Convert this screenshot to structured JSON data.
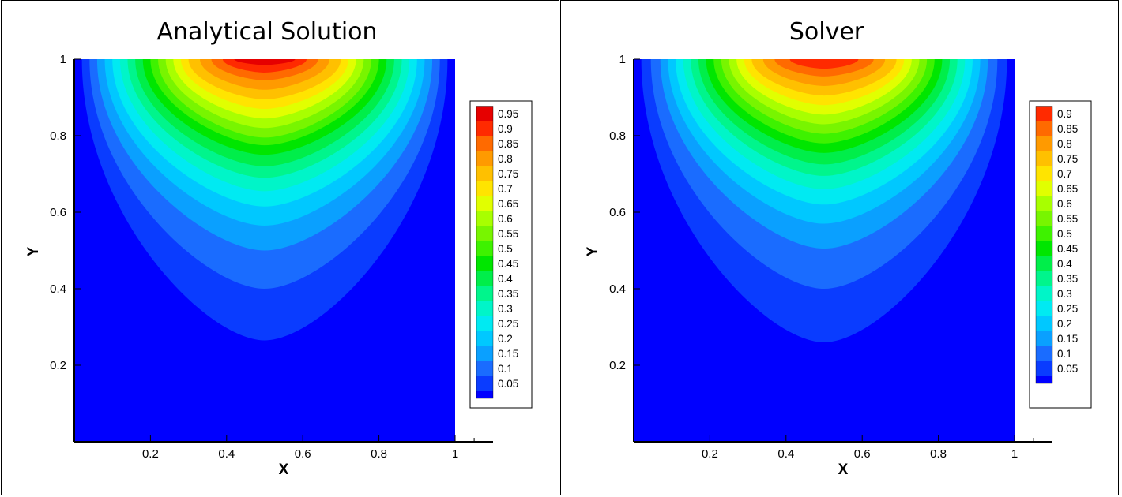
{
  "chart_data": [
    {
      "type": "heatmap",
      "subtype": "filled-contour",
      "title": "Analytical Solution",
      "xlabel": "X",
      "ylabel": "Y",
      "xlim": [
        0,
        1
      ],
      "ylim": [
        0,
        1
      ],
      "x_ticks": [
        "0.2",
        "0.4",
        "0.6",
        "0.8",
        "1"
      ],
      "y_ticks": [
        "0.2",
        "0.4",
        "0.6",
        "0.8",
        "1"
      ],
      "legend_position": "right",
      "legend_levels": [
        "0.95",
        "0.9",
        "0.85",
        "0.8",
        "0.75",
        "0.7",
        "0.65",
        "0.6",
        "0.55",
        "0.5",
        "0.45",
        "0.4",
        "0.35",
        "0.3",
        "0.25",
        "0.2",
        "0.15",
        "0.1",
        "0.05"
      ],
      "contour_boundaries": [
        {
          "level": 0.95,
          "y_center": 0.985,
          "x_at_top": [
            0.42,
            0.58
          ]
        },
        {
          "level": 0.9,
          "y_center": 0.965,
          "x_at_top": [
            0.39,
            0.61
          ]
        },
        {
          "level": 0.85,
          "y_center": 0.945,
          "x_at_top": [
            0.36,
            0.64
          ]
        },
        {
          "level": 0.8,
          "y_center": 0.92,
          "x_at_top": [
            0.33,
            0.67
          ]
        },
        {
          "level": 0.75,
          "y_center": 0.895,
          "x_at_top": [
            0.3,
            0.7
          ]
        },
        {
          "level": 0.7,
          "y_center": 0.87,
          "x_at_top": [
            0.28,
            0.72
          ]
        },
        {
          "level": 0.65,
          "y_center": 0.845,
          "x_at_top": [
            0.26,
            0.74
          ]
        },
        {
          "level": 0.6,
          "y_center": 0.82,
          "x_at_top": [
            0.24,
            0.76
          ]
        },
        {
          "level": 0.55,
          "y_center": 0.795,
          "x_at_top": [
            0.22,
            0.78
          ]
        },
        {
          "level": 0.5,
          "y_center": 0.775,
          "x_at_top": [
            0.2,
            0.8
          ]
        },
        {
          "level": 0.45,
          "y_center": 0.75,
          "x_at_top": [
            0.18,
            0.82
          ]
        },
        {
          "level": 0.4,
          "y_center": 0.72,
          "x_at_top": [
            0.16,
            0.84
          ]
        },
        {
          "level": 0.35,
          "y_center": 0.69,
          "x_at_top": [
            0.14,
            0.86
          ]
        },
        {
          "level": 0.3,
          "y_center": 0.655,
          "x_at_top": [
            0.12,
            0.88
          ]
        },
        {
          "level": 0.25,
          "y_center": 0.615,
          "x_at_top": [
            0.1,
            0.9
          ]
        },
        {
          "level": 0.2,
          "y_center": 0.565,
          "x_at_top": [
            0.08,
            0.92
          ]
        },
        {
          "level": 0.15,
          "y_center": 0.5,
          "x_at_top": [
            0.06,
            0.94
          ]
        },
        {
          "level": 0.1,
          "y_center": 0.4,
          "x_at_top": [
            0.04,
            0.96
          ]
        },
        {
          "level": 0.05,
          "y_center": 0.265,
          "x_at_top": [
            0.02,
            0.98
          ]
        }
      ]
    },
    {
      "type": "heatmap",
      "subtype": "filled-contour",
      "title": "Solver",
      "xlabel": "X",
      "ylabel": "Y",
      "xlim": [
        0,
        1
      ],
      "ylim": [
        0,
        1
      ],
      "x_ticks": [
        "0.2",
        "0.4",
        "0.6",
        "0.8",
        "1"
      ],
      "y_ticks": [
        "0.2",
        "0.4",
        "0.6",
        "0.8",
        "1"
      ],
      "legend_position": "right",
      "legend_levels": [
        "0.9",
        "0.85",
        "0.8",
        "0.75",
        "0.7",
        "0.65",
        "0.6",
        "0.55",
        "0.5",
        "0.45",
        "0.4",
        "0.35",
        "0.3",
        "0.25",
        "0.2",
        "0.15",
        "0.1",
        "0.05"
      ],
      "contour_boundaries": [
        {
          "level": 0.9,
          "y_center": 0.975,
          "x_at_top": [
            0.41,
            0.59
          ]
        },
        {
          "level": 0.85,
          "y_center": 0.955,
          "x_at_top": [
            0.37,
            0.63
          ]
        },
        {
          "level": 0.8,
          "y_center": 0.93,
          "x_at_top": [
            0.34,
            0.66
          ]
        },
        {
          "level": 0.75,
          "y_center": 0.905,
          "x_at_top": [
            0.31,
            0.69
          ]
        },
        {
          "level": 0.7,
          "y_center": 0.88,
          "x_at_top": [
            0.29,
            0.71
          ]
        },
        {
          "level": 0.65,
          "y_center": 0.855,
          "x_at_top": [
            0.27,
            0.73
          ]
        },
        {
          "level": 0.6,
          "y_center": 0.83,
          "x_at_top": [
            0.25,
            0.75
          ]
        },
        {
          "level": 0.55,
          "y_center": 0.805,
          "x_at_top": [
            0.23,
            0.77
          ]
        },
        {
          "level": 0.5,
          "y_center": 0.78,
          "x_at_top": [
            0.21,
            0.79
          ]
        },
        {
          "level": 0.45,
          "y_center": 0.755,
          "x_at_top": [
            0.19,
            0.81
          ]
        },
        {
          "level": 0.4,
          "y_center": 0.725,
          "x_at_top": [
            0.17,
            0.83
          ]
        },
        {
          "level": 0.35,
          "y_center": 0.695,
          "x_at_top": [
            0.15,
            0.85
          ]
        },
        {
          "level": 0.3,
          "y_center": 0.66,
          "x_at_top": [
            0.13,
            0.87
          ]
        },
        {
          "level": 0.25,
          "y_center": 0.62,
          "x_at_top": [
            0.11,
            0.89
          ]
        },
        {
          "level": 0.2,
          "y_center": 0.57,
          "x_at_top": [
            0.09,
            0.91
          ]
        },
        {
          "level": 0.15,
          "y_center": 0.505,
          "x_at_top": [
            0.07,
            0.93
          ]
        },
        {
          "level": 0.1,
          "y_center": 0.4,
          "x_at_top": [
            0.045,
            0.955
          ]
        },
        {
          "level": 0.05,
          "y_center": 0.26,
          "x_at_top": [
            0.02,
            0.98
          ]
        }
      ]
    }
  ],
  "colors": {
    "0.05": "#0000ff",
    "0.1": "#0a3cff",
    "0.15": "#1a6cff",
    "0.2": "#0aa0ff",
    "0.25": "#00c8ff",
    "0.3": "#00eaf2",
    "0.35": "#00f5c8",
    "0.4": "#00f58c",
    "0.45": "#00ee4a",
    "0.5": "#00e600",
    "0.55": "#3ef200",
    "0.6": "#78f500",
    "0.65": "#a8ff00",
    "0.7": "#e1ff00",
    "0.75": "#ffe400",
    "0.8": "#ffc000",
    "0.85": "#ff9a00",
    "0.9": "#ff6a00",
    "0.95": "#ff2a00",
    "1": "#e60000",
    "axis": "#000000",
    "background": "#ffffff"
  }
}
